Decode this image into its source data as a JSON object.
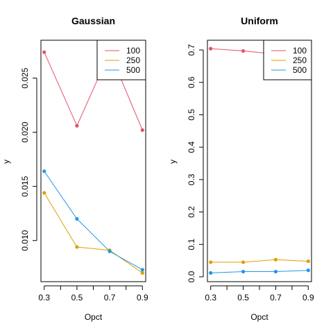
{
  "chart_data": [
    {
      "type": "line",
      "title": "Gaussian",
      "xlabel": "Opct",
      "ylabel": "y",
      "x": [
        0.3,
        0.5,
        0.7,
        0.9
      ],
      "xlim": [
        0.28,
        0.92
      ],
      "ylim": [
        0.0062,
        0.0285
      ],
      "xticks": [
        0.3,
        0.4,
        0.5,
        0.6,
        0.7,
        0.8,
        0.9
      ],
      "xtick_labels": [
        "0.3",
        "",
        "0.5",
        "",
        "0.7",
        "",
        "0.9"
      ],
      "yticks": [
        0.01,
        0.015,
        0.02,
        0.025
      ],
      "ytick_labels": [
        "0.010",
        "0.015",
        "0.020",
        "0.025"
      ],
      "legend_position": "top-right",
      "grid": false,
      "series": [
        {
          "name": "100",
          "color": "#DF536B",
          "values": [
            0.0274,
            0.0206,
            0.0274,
            0.0202
          ]
        },
        {
          "name": "250",
          "color": "#DF9F00",
          "values": [
            0.0144,
            0.0094,
            0.0091,
            0.007
          ]
        },
        {
          "name": "500",
          "color": "#2297E6",
          "values": [
            0.0164,
            0.012,
            0.009,
            0.0073
          ]
        }
      ]
    },
    {
      "type": "line",
      "title": "Uniform",
      "xlabel": "Opct",
      "ylabel": "y",
      "x": [
        0.3,
        0.5,
        0.7,
        0.9
      ],
      "xlim": [
        0.28,
        0.92
      ],
      "ylim": [
        -0.015,
        0.73
      ],
      "xticks": [
        0.3,
        0.4,
        0.5,
        0.6,
        0.7,
        0.8,
        0.9
      ],
      "xtick_labels": [
        "0.3",
        "",
        "0.5",
        "",
        "0.7",
        "",
        "0.9"
      ],
      "yticks": [
        0.0,
        0.1,
        0.2,
        0.3,
        0.4,
        0.5,
        0.6,
        0.7
      ],
      "ytick_labels": [
        "0.0",
        "0.1",
        "0.2",
        "0.3",
        "0.4",
        "0.5",
        "0.6",
        "0.7"
      ],
      "legend_position": "top-right",
      "grid": false,
      "series": [
        {
          "name": "100",
          "color": "#DF536B",
          "values": [
            0.704,
            0.697,
            0.687,
            0.68
          ]
        },
        {
          "name": "250",
          "color": "#DF9F00",
          "values": [
            0.045,
            0.045,
            0.053,
            0.048
          ]
        },
        {
          "name": "500",
          "color": "#2297E6",
          "values": [
            0.012,
            0.016,
            0.016,
            0.02
          ]
        }
      ]
    }
  ]
}
